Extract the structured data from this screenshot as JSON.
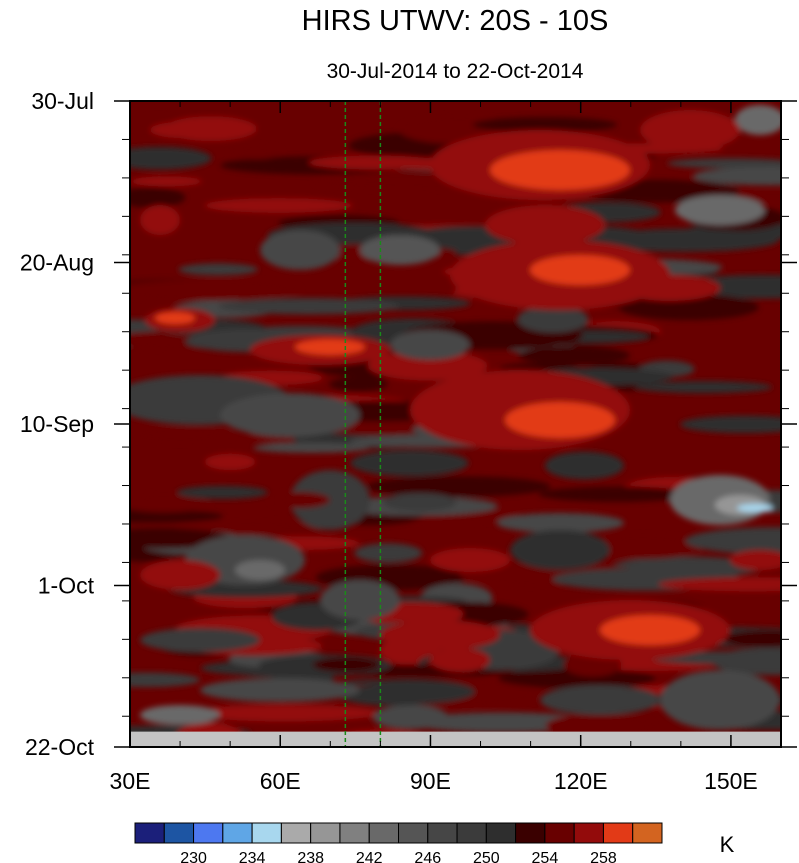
{
  "chart_data": {
    "type": "heatmap",
    "title": "HIRS UTWV: 20S - 10S",
    "subtitle": "30-Jul-2014 to 22-Oct-2014",
    "x_axis": {
      "range": [
        30,
        160
      ],
      "ticks": [
        {
          "value": 30,
          "label": "30E"
        },
        {
          "value": 60,
          "label": "60E"
        },
        {
          "value": 90,
          "label": "90E"
        },
        {
          "value": 120,
          "label": "120E"
        },
        {
          "value": 150,
          "label": "150E"
        }
      ],
      "minor_step": 10
    },
    "y_axis": {
      "range": [
        "2014-07-30",
        "2014-10-22"
      ],
      "direction": "top-to-bottom",
      "ticks": [
        {
          "value": "2014-07-30",
          "label": "30-Jul"
        },
        {
          "value": "2014-08-20",
          "label": "20-Aug"
        },
        {
          "value": "2014-09-10",
          "label": "10-Sep"
        },
        {
          "value": "2014-10-01",
          "label": "1-Oct"
        },
        {
          "value": "2014-10-22",
          "label": "22-Oct"
        }
      ],
      "minor_step_days": 5
    },
    "reference_lines": [
      {
        "orientation": "vertical",
        "x": 73,
        "color": "#1a8a1a",
        "style": "dashed"
      },
      {
        "orientation": "vertical",
        "x": 80,
        "color": "#1a8a1a",
        "style": "dashed"
      }
    ],
    "no_data_band": {
      "from": "2014-10-20",
      "to": "2014-10-22",
      "color": "#c4c4c4"
    },
    "colorbar": {
      "unit": "K",
      "levels": [
        228,
        230,
        232,
        234,
        236,
        238,
        240,
        242,
        244,
        246,
        248,
        250,
        252,
        254,
        256,
        258,
        260
      ],
      "colors": [
        "#1b1f7a",
        "#1d55a3",
        "#4d78f0",
        "#5fa6e6",
        "#a8d7ee",
        "#aaaaaa",
        "#969696",
        "#808080",
        "#696969",
        "#555555",
        "#464646",
        "#3b3b3b",
        "#2e2e2e",
        "#3a0000",
        "#680000",
        "#930b0b",
        "#e23a17",
        "#d36420"
      ],
      "labels": [
        {
          "value": 230,
          "text": "230"
        },
        {
          "value": 234,
          "text": "234"
        },
        {
          "value": 238,
          "text": "238"
        },
        {
          "value": 242,
          "text": "242"
        },
        {
          "value": 246,
          "text": "246"
        },
        {
          "value": 250,
          "text": "250"
        },
        {
          "value": 254,
          "text": "254"
        },
        {
          "value": 258,
          "text": "258"
        }
      ]
    },
    "grid": false
  }
}
